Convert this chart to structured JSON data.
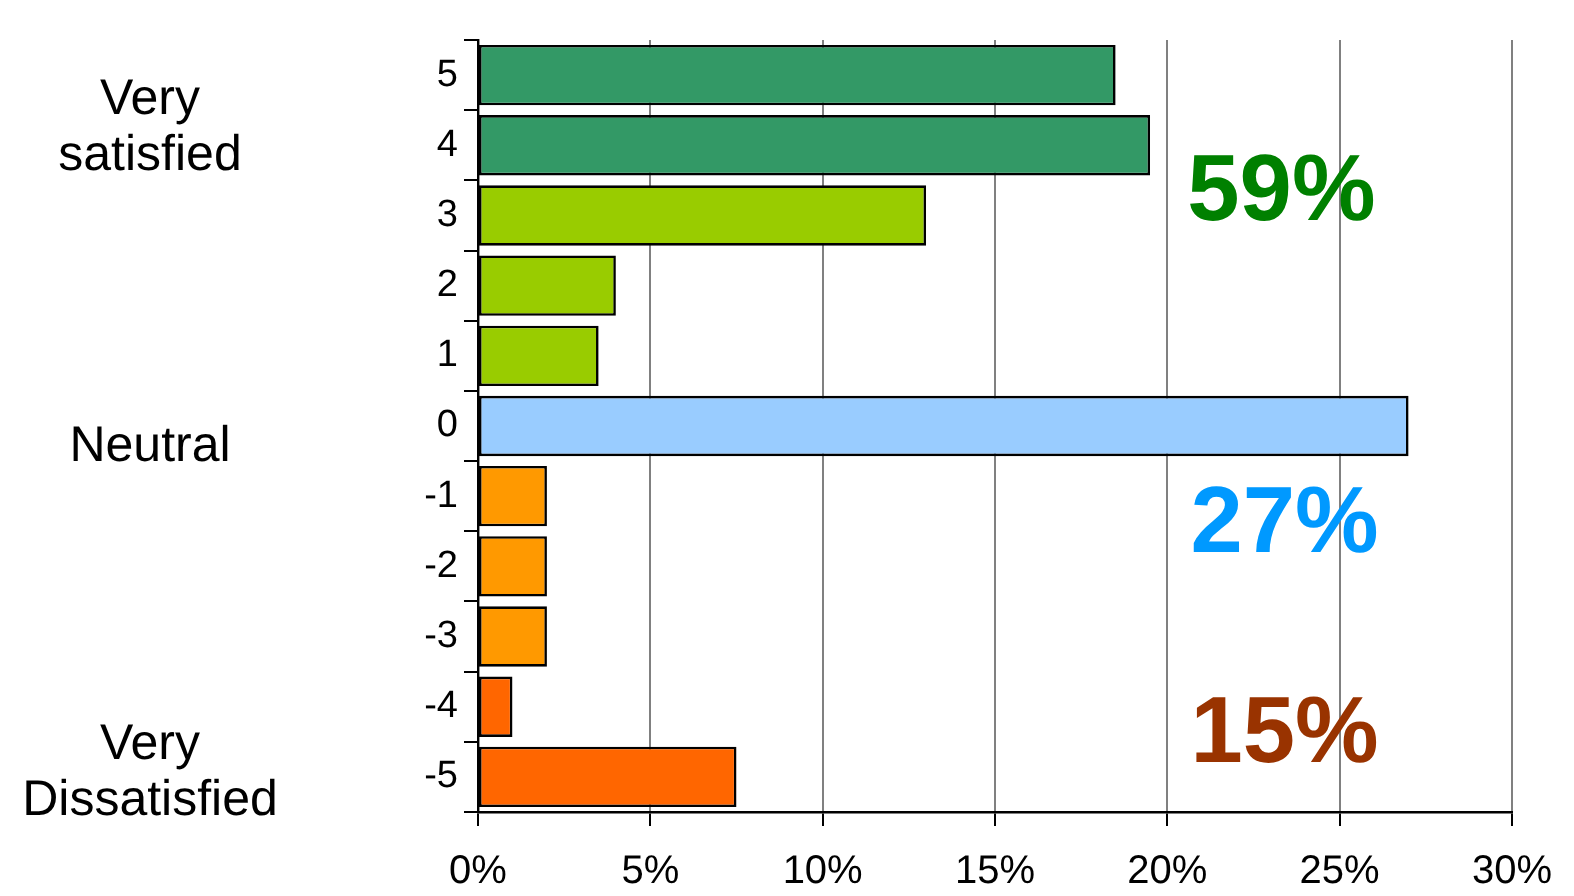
{
  "chart_data": {
    "type": "bar",
    "orientation": "horizontal",
    "categories": [
      "5",
      "4",
      "3",
      "2",
      "1",
      "0",
      "-1",
      "-2",
      "-3",
      "-4",
      "-5"
    ],
    "values": [
      18.5,
      19.5,
      13,
      4,
      3.5,
      27,
      2,
      2,
      2,
      1,
      7.5
    ],
    "colors": [
      "#339966",
      "#339966",
      "#99cc00",
      "#99cc00",
      "#99cc00",
      "#99ccff",
      "#ff9900",
      "#ff9900",
      "#ff9900",
      "#ff6600",
      "#ff6600"
    ],
    "xlim": [
      0,
      30
    ],
    "xticks": [
      {
        "value": 0,
        "label": "0%"
      },
      {
        "value": 5,
        "label": "5%"
      },
      {
        "value": 10,
        "label": "10%"
      },
      {
        "value": 15,
        "label": "15%"
      },
      {
        "value": 20,
        "label": "20%"
      },
      {
        "value": 25,
        "label": "25%"
      },
      {
        "value": 30,
        "label": "30%"
      }
    ],
    "grid": "x",
    "annotations": [
      "Very satisfied",
      "Neutral",
      "Very Dissatisfied",
      "59%",
      "27%",
      "15%"
    ]
  }
}
